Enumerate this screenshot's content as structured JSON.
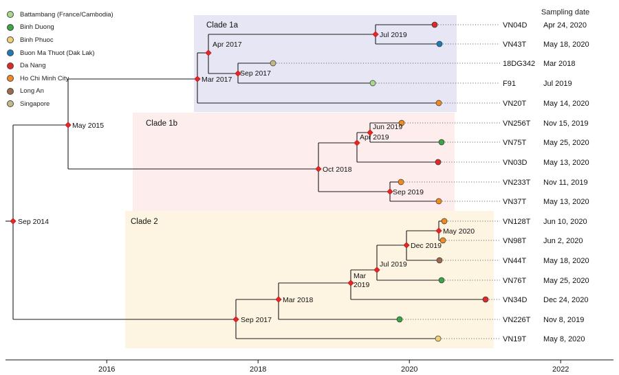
{
  "legend": [
    {
      "label": "Battambang (France/Cambodia)",
      "color": "#a8d88a"
    },
    {
      "label": "Binh Duong",
      "color": "#3aa545"
    },
    {
      "label": "Binh Phuoc",
      "color": "#f2cf75"
    },
    {
      "label": "Buon Ma Thuot (Dak Lak)",
      "color": "#1f7ab8"
    },
    {
      "label": "Da Nang",
      "color": "#e02828"
    },
    {
      "label": "Ho Chi Minh City",
      "color": "#f28a1f"
    },
    {
      "label": "Long An",
      "color": "#9e6a4a"
    },
    {
      "label": "Singapore",
      "color": "#c2b88a"
    }
  ],
  "column_header": "Sampling date",
  "clades": [
    {
      "label": "Clade 1a",
      "fill": "#e6e6f4"
    },
    {
      "label": "Clade 1b",
      "fill": "#fdeeed"
    },
    {
      "label": "Clade 2",
      "fill": "#fdf5e2"
    }
  ],
  "axis": {
    "ticks": [
      "2016",
      "2018",
      "2020",
      "2022"
    ]
  },
  "tips": [
    {
      "name": "VN04D",
      "date": "Apr 24, 2020",
      "location": "Da Nang"
    },
    {
      "name": "VN43T",
      "date": "May 18, 2020",
      "location": "Buon Ma Thuot (Dak Lak)"
    },
    {
      "name": "18DG342",
      "date": "Mar 2018",
      "location": "Singapore"
    },
    {
      "name": "F91",
      "date": "Jul 2019",
      "location": "Battambang (France/Cambodia)"
    },
    {
      "name": "VN20T",
      "date": "May 14, 2020",
      "location": "Ho Chi Minh City"
    },
    {
      "name": "VN256T",
      "date": "Nov 15, 2019",
      "location": "Ho Chi Minh City"
    },
    {
      "name": "VN75T",
      "date": "May 25, 2020",
      "location": "Binh Duong"
    },
    {
      "name": "VN03D",
      "date": "May 13, 2020",
      "location": "Da Nang"
    },
    {
      "name": "VN233T",
      "date": "Nov 11, 2019",
      "location": "Ho Chi Minh City"
    },
    {
      "name": "VN37T",
      "date": "May 13, 2020",
      "location": "Ho Chi Minh City"
    },
    {
      "name": "VN128T",
      "date": "Jun 10, 2020",
      "location": "Ho Chi Minh City"
    },
    {
      "name": "VN98T",
      "date": "Jun 2, 2020",
      "location": "Ho Chi Minh City"
    },
    {
      "name": "VN44T",
      "date": "May 18, 2020",
      "location": "Long An"
    },
    {
      "name": "VN76T",
      "date": "May 25, 2020",
      "location": "Binh Duong"
    },
    {
      "name": "VN34D",
      "date": "Dec 24, 2020",
      "location": "Da Nang"
    },
    {
      "name": "VN226T",
      "date": "Nov 8, 2019",
      "location": "Binh Duong"
    },
    {
      "name": "VN19T",
      "date": "May 8, 2020",
      "location": "Binh Phuoc"
    }
  ],
  "nodes": [
    {
      "label": "Sep 2014"
    },
    {
      "label": "May 2015"
    },
    {
      "label": "Mar 2017"
    },
    {
      "label": "Apr 2017"
    },
    {
      "label": "Sep 2017"
    },
    {
      "label": "Jul 2019"
    },
    {
      "label": "Oct 2018"
    },
    {
      "label": "Apr 2019"
    },
    {
      "label": "Jun 2019"
    },
    {
      "label": "Sep 2019"
    },
    {
      "label": "Sep 2017"
    },
    {
      "label": "Mar 2018"
    },
    {
      "label": "Mar 2019"
    },
    {
      "label": "Jul 2019"
    },
    {
      "label": "Dec 2019"
    },
    {
      "label": "May 2020"
    }
  ]
}
